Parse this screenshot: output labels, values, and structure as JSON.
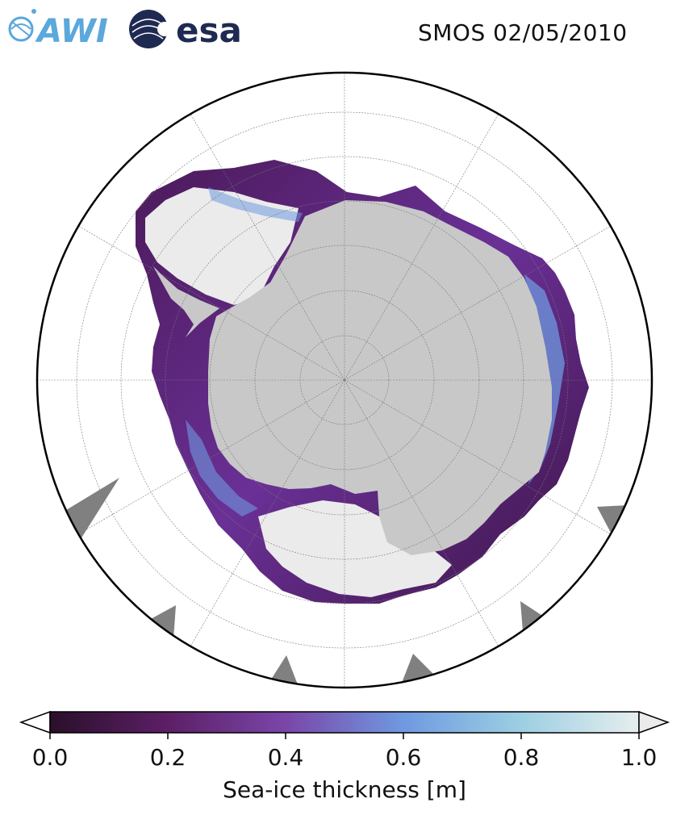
{
  "header": {
    "logo_left": "AWI",
    "logo_right": "esa",
    "title": "SMOS 02/05/2010"
  },
  "map": {
    "projection": "south-polar-stereographic",
    "hemisphere": "Antarctica",
    "graticule": true,
    "colors": {
      "land": "#c8c8c8",
      "ocean": "#ffffff",
      "no_data": "#808080",
      "thick_ice": "#ebebeb",
      "thin_ice": "#5a2a6e"
    }
  },
  "colorbar": {
    "label": "Sea-ice thickness [m]",
    "min": 0.0,
    "max": 1.0,
    "extend": "both",
    "ticks": [
      "0.0",
      "0.2",
      "0.4",
      "0.6",
      "0.8",
      "1.0"
    ],
    "tick_values": [
      0.0,
      0.2,
      0.4,
      0.6,
      0.8,
      1.0
    ],
    "stops": [
      {
        "v": 0.0,
        "c": "#2a0f2a"
      },
      {
        "v": 0.2,
        "c": "#5c1f66"
      },
      {
        "v": 0.4,
        "c": "#7a46a8"
      },
      {
        "v": 0.6,
        "c": "#6f99e0"
      },
      {
        "v": 0.8,
        "c": "#9ccfe2"
      },
      {
        "v": 1.0,
        "c": "#e6eeee"
      }
    ],
    "over_color": "#ebebeb",
    "under_color": "#ffffff"
  }
}
